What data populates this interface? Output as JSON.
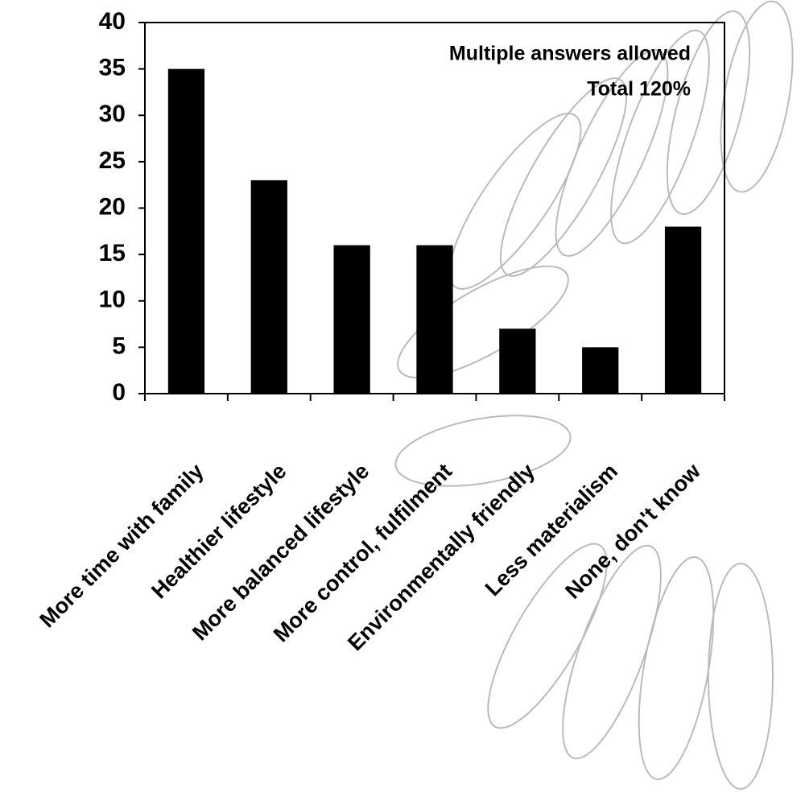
{
  "chart_data": {
    "type": "bar",
    "annotations": [
      "Multiple answers allowed",
      "Total 120%"
    ],
    "categories": [
      "More time with family",
      "Healthier lifestyle",
      "More balanced lifestyle",
      "More control, fulfilment",
      "Environmentally friendly",
      "Less materialism",
      "None, don't know"
    ],
    "values": [
      35,
      23,
      16,
      16,
      7,
      5,
      18
    ],
    "color": "#000000",
    "ylim": [
      0,
      40
    ],
    "yticks": [
      0,
      5,
      10,
      15,
      20,
      25,
      30,
      35,
      40
    ],
    "grid": false
  }
}
